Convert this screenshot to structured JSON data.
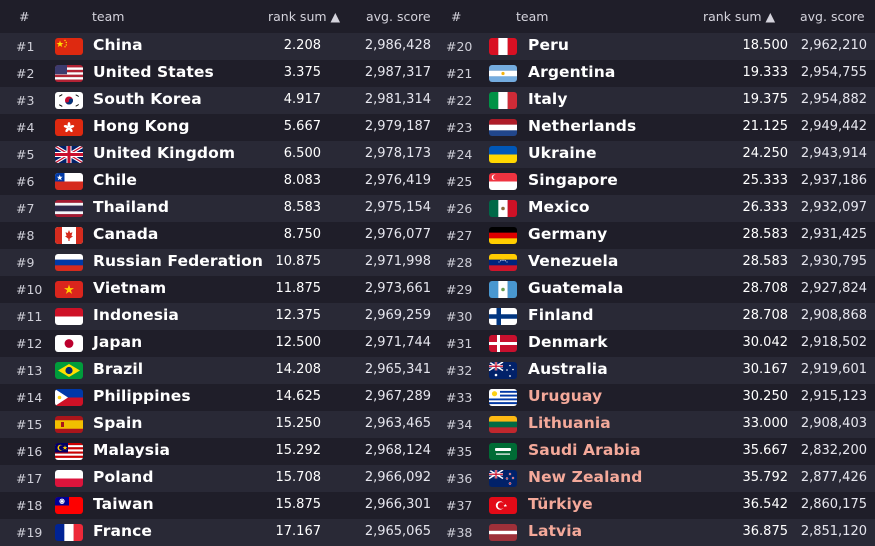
{
  "header": {
    "rank_label": "#",
    "team_label": "team",
    "rank_sum_label": "rank sum ▲",
    "avg_score_label": "avg. score"
  },
  "colors": {
    "background": "#1f1e29",
    "row_alt": "#292936",
    "name_default": "#ffffff",
    "name_salmon": "#f4a99a"
  },
  "rows": [
    {
      "rank": "#1",
      "team": "China",
      "flag": "china-flag-icon",
      "rank_sum": "2.208",
      "avg_score": "2,986,428"
    },
    {
      "rank": "#2",
      "team": "United States",
      "flag": "united-states-flag-icon",
      "rank_sum": "3.375",
      "avg_score": "2,987,317"
    },
    {
      "rank": "#3",
      "team": "South Korea",
      "flag": "south-korea-flag-icon",
      "rank_sum": "4.917",
      "avg_score": "2,981,314"
    },
    {
      "rank": "#4",
      "team": "Hong Kong",
      "flag": "hong-kong-flag-icon",
      "rank_sum": "5.667",
      "avg_score": "2,979,187"
    },
    {
      "rank": "#5",
      "team": "United Kingdom",
      "flag": "united-kingdom-flag-icon",
      "rank_sum": "6.500",
      "avg_score": "2,978,173"
    },
    {
      "rank": "#6",
      "team": "Chile",
      "flag": "chile-flag-icon",
      "rank_sum": "8.083",
      "avg_score": "2,976,419"
    },
    {
      "rank": "#7",
      "team": "Thailand",
      "flag": "thailand-flag-icon",
      "rank_sum": "8.583",
      "avg_score": "2,975,154"
    },
    {
      "rank": "#8",
      "team": "Canada",
      "flag": "canada-flag-icon",
      "rank_sum": "8.750",
      "avg_score": "2,976,077"
    },
    {
      "rank": "#9",
      "team": "Russian Federation",
      "flag": "russia-flag-icon",
      "rank_sum": "10.875",
      "avg_score": "2,971,998"
    },
    {
      "rank": "#10",
      "team": "Vietnam",
      "flag": "vietnam-flag-icon",
      "rank_sum": "11.875",
      "avg_score": "2,973,661"
    },
    {
      "rank": "#11",
      "team": "Indonesia",
      "flag": "indonesia-flag-icon",
      "rank_sum": "12.375",
      "avg_score": "2,969,259"
    },
    {
      "rank": "#12",
      "team": "Japan",
      "flag": "japan-flag-icon",
      "rank_sum": "12.500",
      "avg_score": "2,971,744"
    },
    {
      "rank": "#13",
      "team": "Brazil",
      "flag": "brazil-flag-icon",
      "rank_sum": "14.208",
      "avg_score": "2,965,341"
    },
    {
      "rank": "#14",
      "team": "Philippines",
      "flag": "philippines-flag-icon",
      "rank_sum": "14.625",
      "avg_score": "2,967,289"
    },
    {
      "rank": "#15",
      "team": "Spain",
      "flag": "spain-flag-icon",
      "rank_sum": "15.250",
      "avg_score": "2,963,465"
    },
    {
      "rank": "#16",
      "team": "Malaysia",
      "flag": "malaysia-flag-icon",
      "rank_sum": "15.292",
      "avg_score": "2,968,124"
    },
    {
      "rank": "#17",
      "team": "Poland",
      "flag": "poland-flag-icon",
      "rank_sum": "15.708",
      "avg_score": "2,966,092"
    },
    {
      "rank": "#18",
      "team": "Taiwan",
      "flag": "taiwan-flag-icon",
      "rank_sum": "15.875",
      "avg_score": "2,966,301"
    },
    {
      "rank": "#19",
      "team": "France",
      "flag": "france-flag-icon",
      "rank_sum": "17.167",
      "avg_score": "2,965,065"
    },
    {
      "rank": "#20",
      "team": "Peru",
      "flag": "peru-flag-icon",
      "rank_sum": "18.500",
      "avg_score": "2,962,210"
    },
    {
      "rank": "#21",
      "team": "Argentina",
      "flag": "argentina-flag-icon",
      "rank_sum": "19.333",
      "avg_score": "2,954,755"
    },
    {
      "rank": "#22",
      "team": "Italy",
      "flag": "italy-flag-icon",
      "rank_sum": "19.375",
      "avg_score": "2,954,882"
    },
    {
      "rank": "#23",
      "team": "Netherlands",
      "flag": "netherlands-flag-icon",
      "rank_sum": "21.125",
      "avg_score": "2,949,442"
    },
    {
      "rank": "#24",
      "team": "Ukraine",
      "flag": "ukraine-flag-icon",
      "rank_sum": "24.250",
      "avg_score": "2,943,914"
    },
    {
      "rank": "#25",
      "team": "Singapore",
      "flag": "singapore-flag-icon",
      "rank_sum": "25.333",
      "avg_score": "2,937,186"
    },
    {
      "rank": "#26",
      "team": "Mexico",
      "flag": "mexico-flag-icon",
      "rank_sum": "26.333",
      "avg_score": "2,932,097"
    },
    {
      "rank": "#27",
      "team": "Germany",
      "flag": "germany-flag-icon",
      "rank_sum": "28.583",
      "avg_score": "2,931,425"
    },
    {
      "rank": "#28",
      "team": "Venezuela",
      "flag": "venezuela-flag-icon",
      "rank_sum": "28.583",
      "avg_score": "2,930,795"
    },
    {
      "rank": "#29",
      "team": "Guatemala",
      "flag": "guatemala-flag-icon",
      "rank_sum": "28.708",
      "avg_score": "2,927,824"
    },
    {
      "rank": "#30",
      "team": "Finland",
      "flag": "finland-flag-icon",
      "rank_sum": "28.708",
      "avg_score": "2,908,868"
    },
    {
      "rank": "#31",
      "team": "Denmark",
      "flag": "denmark-flag-icon",
      "rank_sum": "30.042",
      "avg_score": "2,918,502"
    },
    {
      "rank": "#32",
      "team": "Australia",
      "flag": "australia-flag-icon",
      "rank_sum": "30.167",
      "avg_score": "2,919,601"
    },
    {
      "rank": "#33",
      "team": "Uruguay",
      "flag": "uruguay-flag-icon",
      "rank_sum": "30.250",
      "avg_score": "2,915,123",
      "highlight": true
    },
    {
      "rank": "#34",
      "team": "Lithuania",
      "flag": "lithuania-flag-icon",
      "rank_sum": "33.000",
      "avg_score": "2,908,403",
      "highlight": true
    },
    {
      "rank": "#35",
      "team": "Saudi Arabia",
      "flag": "saudi-arabia-flag-icon",
      "rank_sum": "35.667",
      "avg_score": "2,832,200",
      "highlight": true
    },
    {
      "rank": "#36",
      "team": "New Zealand",
      "flag": "new-zealand-flag-icon",
      "rank_sum": "35.792",
      "avg_score": "2,877,426",
      "highlight": true
    },
    {
      "rank": "#37",
      "team": "Türkiye",
      "flag": "turkiye-flag-icon",
      "rank_sum": "36.542",
      "avg_score": "2,860,175",
      "highlight": true
    },
    {
      "rank": "#38",
      "team": "Latvia",
      "flag": "latvia-flag-icon",
      "rank_sum": "36.875",
      "avg_score": "2,851,120",
      "highlight": true
    }
  ]
}
